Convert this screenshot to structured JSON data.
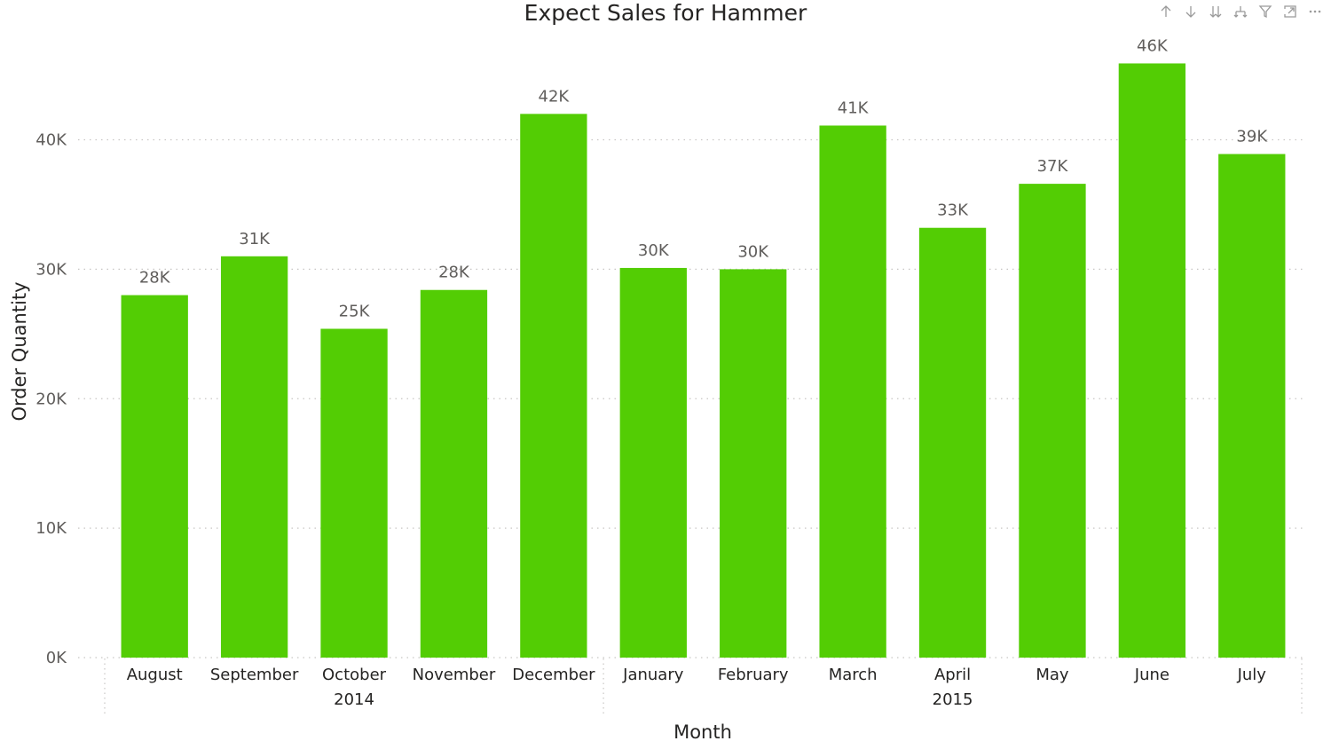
{
  "title": "Expect Sales for Hammer",
  "toolbar": {
    "icons": [
      "arrow-up-icon",
      "arrow-down-icon",
      "double-arrow-down-icon",
      "expand-hierarchy-icon",
      "filter-icon",
      "focus-mode-icon",
      "more-options-icon"
    ]
  },
  "colors": {
    "bar": "#53cd04",
    "grid": "#c8c6c4",
    "text": "#252423",
    "muted": "#605e5c"
  },
  "chart_data": {
    "type": "bar",
    "title": "Expect Sales for Hammer",
    "xlabel": "Month",
    "ylabel": "Order Quantity",
    "categories": [
      "August",
      "September",
      "October",
      "November",
      "December",
      "January",
      "February",
      "March",
      "April",
      "May",
      "June",
      "July"
    ],
    "values": [
      28000,
      31000,
      25400,
      28400,
      42000,
      30100,
      30000,
      41100,
      33200,
      36600,
      45900,
      38900
    ],
    "data_labels": [
      "28K",
      "31K",
      "25K",
      "28K",
      "42K",
      "30K",
      "30K",
      "41K",
      "33K",
      "37K",
      "46K",
      "39K"
    ],
    "groups": [
      {
        "label": "2014",
        "start": 0,
        "end": 4
      },
      {
        "label": "2015",
        "start": 5,
        "end": 11
      }
    ],
    "yticks": [
      0,
      10000,
      20000,
      30000,
      40000
    ],
    "ytick_labels": [
      "0K",
      "10K",
      "20K",
      "30K",
      "40K"
    ],
    "ylim": [
      0,
      46000
    ],
    "grid": true
  }
}
